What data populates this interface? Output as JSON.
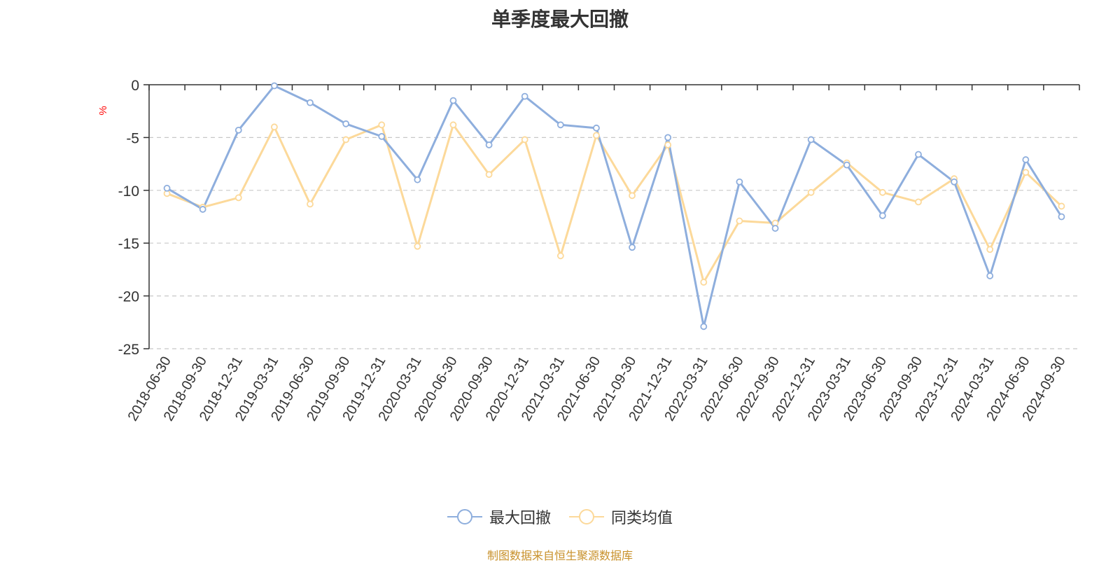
{
  "chart_data": {
    "type": "line",
    "title": "单季度最大回撤",
    "ylabel": "%",
    "ylim": [
      -25,
      0
    ],
    "yticks": [
      0,
      -5,
      -10,
      -15,
      -20,
      -25
    ],
    "grid": true,
    "legend_position": "bottom",
    "categories": [
      "2018-06-30",
      "2018-09-30",
      "2018-12-31",
      "2019-03-31",
      "2019-06-30",
      "2019-09-30",
      "2019-12-31",
      "2020-03-31",
      "2020-06-30",
      "2020-09-30",
      "2020-12-31",
      "2021-03-31",
      "2021-06-30",
      "2021-09-30",
      "2021-12-31",
      "2022-03-31",
      "2022-06-30",
      "2022-09-30",
      "2022-12-31",
      "2023-03-31",
      "2023-06-30",
      "2023-09-30",
      "2023-12-31",
      "2024-03-31",
      "2024-06-30",
      "2024-09-30"
    ],
    "series": [
      {
        "name": "最大回撤",
        "color": "#8eaedd",
        "values": [
          -9.8,
          -11.8,
          -4.3,
          -0.1,
          -1.7,
          -3.7,
          -4.9,
          -9.0,
          -1.5,
          -5.7,
          -1.1,
          -3.8,
          -4.1,
          -15.4,
          -5.0,
          -22.9,
          -9.2,
          -13.6,
          -5.2,
          -7.6,
          -12.4,
          -6.6,
          -9.2,
          -18.1,
          -7.1,
          -12.5
        ]
      },
      {
        "name": "同类均值",
        "color": "#fcd99a",
        "values": [
          -10.3,
          -11.6,
          -10.7,
          -4.0,
          -11.3,
          -5.2,
          -3.8,
          -15.3,
          -3.8,
          -8.5,
          -5.2,
          -16.2,
          -4.8,
          -10.5,
          -5.7,
          -18.7,
          -12.9,
          -13.1,
          -10.2,
          -7.4,
          -10.2,
          -11.1,
          -8.9,
          -15.6,
          -8.3,
          -11.5
        ]
      }
    ]
  },
  "source_text": "制图数据来自恒生聚源数据库"
}
